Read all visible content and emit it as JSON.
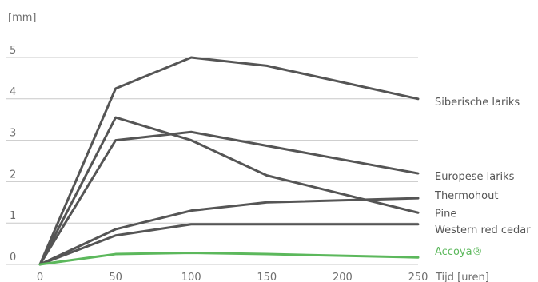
{
  "chart_data": {
    "type": "line",
    "y_unit_label": "[mm]",
    "xlabel": "Tijd [uren]",
    "x_ticks": [
      0,
      50,
      100,
      150,
      200,
      250
    ],
    "y_ticks": [
      0,
      1,
      2,
      3,
      4,
      5
    ],
    "xlim": [
      0,
      250
    ],
    "ylim": [
      0,
      5
    ],
    "grid": "horizontal",
    "legend": "right, labels at line ends",
    "series": [
      {
        "name": "Siberische lariks",
        "color": "#555555",
        "x": [
          0,
          50,
          100,
          150,
          250
        ],
        "y": [
          0,
          4.25,
          5.0,
          4.8,
          4.0
        ]
      },
      {
        "name": "Europese lariks",
        "color": "#555555",
        "x": [
          0,
          50,
          100,
          250
        ],
        "y": [
          0,
          3.0,
          3.2,
          2.2
        ]
      },
      {
        "name": "Thermohout",
        "color": "#555555",
        "x": [
          0,
          50,
          100,
          150,
          250
        ],
        "y": [
          0,
          0.85,
          1.3,
          1.5,
          1.6
        ]
      },
      {
        "name": "Pine",
        "color": "#555555",
        "x": [
          0,
          50,
          100,
          150,
          250
        ],
        "y": [
          0,
          3.55,
          3.0,
          2.15,
          1.25
        ]
      },
      {
        "name": "Western red cedar",
        "color": "#555555",
        "x": [
          0,
          50,
          100,
          250
        ],
        "y": [
          0,
          0.7,
          0.97,
          0.97
        ]
      },
      {
        "name": "Accoya®",
        "color": "#5cb85c",
        "x": [
          0,
          50,
          100,
          150,
          250
        ],
        "y": [
          0,
          0.25,
          0.28,
          0.25,
          0.17
        ]
      }
    ]
  }
}
